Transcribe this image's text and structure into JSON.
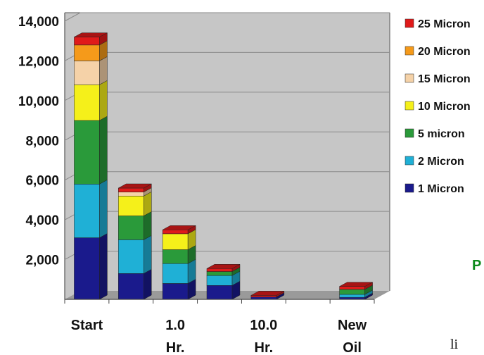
{
  "chart_data": {
    "type": "bar",
    "stacked": true,
    "three_d": true,
    "categories": [
      "Start",
      "",
      "1.0 Hr.",
      "",
      "10.0 Hr.",
      "",
      "New Oil"
    ],
    "category_labels": [
      [
        "Start"
      ],
      [],
      [
        "1.0",
        "Hr."
      ],
      [],
      [
        "10.0",
        "Hr."
      ],
      [],
      [
        "New",
        "Oil"
      ]
    ],
    "series": [
      {
        "name": "1 Micron",
        "color": "#1a1a8c",
        "values": [
          3100,
          1300,
          800,
          700,
          120,
          0,
          100
        ]
      },
      {
        "name": "2 Micron",
        "color": "#1fb0d6",
        "values": [
          2700,
          1700,
          1000,
          500,
          0,
          0,
          150
        ]
      },
      {
        "name": "5 micron",
        "color": "#2a9a3a",
        "values": [
          3200,
          1200,
          700,
          200,
          0,
          0,
          250
        ]
      },
      {
        "name": "10 Micron",
        "color": "#f5f01a",
        "values": [
          1800,
          1000,
          800,
          0,
          0,
          0,
          0
        ]
      },
      {
        "name": "15 Micron",
        "color": "#f5d2a8",
        "values": [
          1200,
          200,
          0,
          0,
          0,
          0,
          0
        ]
      },
      {
        "name": "20 Micron",
        "color": "#f59a1a",
        "values": [
          800,
          0,
          0,
          0,
          0,
          0,
          0
        ]
      },
      {
        "name": "25 Micron",
        "color": "#e01a1a",
        "values": [
          400,
          200,
          200,
          150,
          80,
          0,
          150
        ]
      }
    ],
    "ylim": [
      0,
      14000
    ],
    "yticks": [
      2000,
      4000,
      6000,
      8000,
      10000,
      12000,
      14000
    ],
    "ytick_labels": [
      "2,000",
      "4,000",
      "6,000",
      "8,000",
      "10,000",
      "12,000",
      "14,000"
    ],
    "grid": true,
    "legend_position": "right",
    "xlabel": "",
    "ylabel": "",
    "title": ""
  },
  "stray_text": {
    "p": "P",
    "li": "li"
  }
}
